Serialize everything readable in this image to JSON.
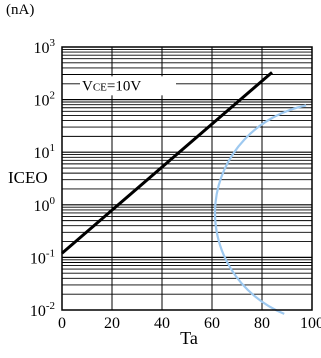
{
  "chart_data": {
    "type": "line",
    "title": "",
    "ylabel": "ICEO",
    "yunit": "(nA)",
    "xlabel": "Ta",
    "xlim": [
      0,
      100
    ],
    "ylim": [
      0.01,
      1000
    ],
    "yscale": "log",
    "xticks": [
      "0",
      "20",
      "40",
      "60",
      "80",
      "100"
    ],
    "yticks": [
      {
        "value": 0.01,
        "base": "10",
        "exp": "-2"
      },
      {
        "value": 0.1,
        "base": "10",
        "exp": "-1"
      },
      {
        "value": 1,
        "base": "10",
        "exp": "0"
      },
      {
        "value": 10,
        "base": "10",
        "exp": "1"
      },
      {
        "value": 100,
        "base": "10",
        "exp": "2"
      },
      {
        "value": 1000,
        "base": "10",
        "exp": "3"
      }
    ],
    "grid": true,
    "annotation": {
      "text": "VCE = 10V",
      "label_main": "V",
      "label_sub": "CE",
      "label_rest": "=10V"
    },
    "series": [
      {
        "x": [
          0,
          84
        ],
        "y": [
          0.12,
          330
        ],
        "color": "#000000"
      }
    ],
    "decoration_color": "#9ec9f0"
  }
}
